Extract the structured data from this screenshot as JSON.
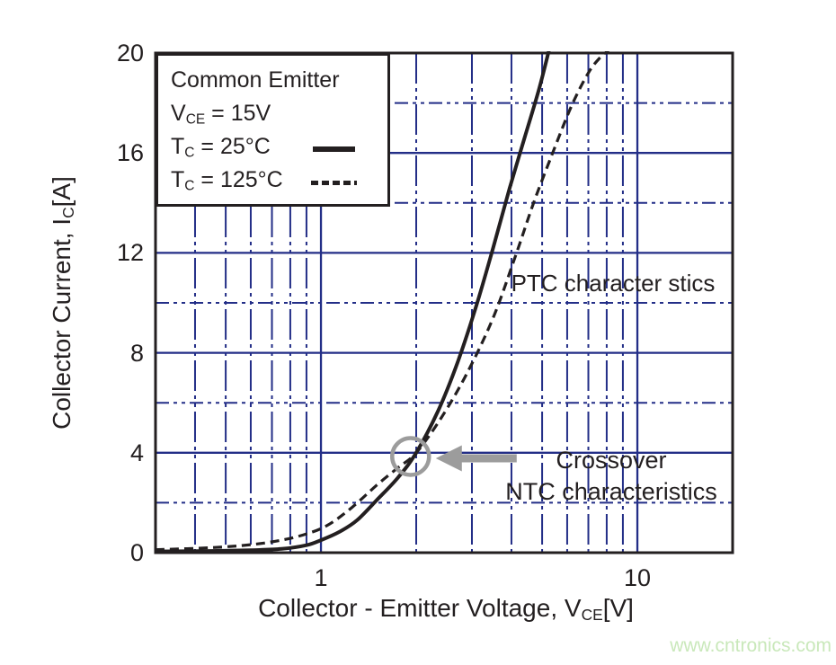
{
  "colors": {
    "grid_blue": "#232e87",
    "curve_black": "#231f20",
    "text_black": "#231f20",
    "annotation_gray": "#9c9c9c",
    "watermark_green": "#c9e8ba"
  },
  "legend": {
    "title": "Common Emitter",
    "rows": [
      {
        "main": "V",
        "sub": "CE",
        "rest": " = 15V"
      },
      {
        "main": "T",
        "sub": "C",
        "rest": " = 25°C"
      },
      {
        "main": "T",
        "sub": "C",
        "rest": " = 125°C"
      }
    ]
  },
  "axes": {
    "y_title": {
      "main": "Collector Current, I",
      "sub": "C",
      "rest": "[A]"
    },
    "x_title": {
      "main": "Collector - Emitter Voltage, V",
      "sub": "CE",
      "rest": "[V]"
    },
    "y_tick_labels": [
      "20",
      "16",
      "12",
      "8",
      "4",
      "0"
    ],
    "x_tick_labels": [
      "1",
      "10"
    ]
  },
  "annotations": {
    "ptc_label": "PTC character stics",
    "crossover_line1": "Crossover",
    "crossover_line2": "NTC characteristics"
  },
  "watermark": "www.cntronics.com",
  "chart_data": {
    "type": "line",
    "title": "",
    "xlabel": "Collector - Emitter Voltage, VCE [V]",
    "ylabel": "Collector Current, IC [A]",
    "x_scale": "log",
    "xlim": [
      0.3,
      20
    ],
    "ylim": [
      0,
      20
    ],
    "grid": true,
    "legend_position": "top-left",
    "x_major_gridlines": [
      1,
      10
    ],
    "x_minor_gridlines": [
      0.4,
      0.5,
      0.6,
      0.7,
      0.8,
      0.9,
      2,
      3,
      4,
      5,
      6,
      7,
      8,
      9
    ],
    "y_major_gridlines": [
      4,
      8,
      12,
      16
    ],
    "y_minor_gridlines": [
      2,
      6,
      10,
      14,
      18
    ],
    "series": [
      {
        "name": "Tc = 25°C",
        "line_style": "solid",
        "temperature_c": 25,
        "x": [
          0.3,
          0.45,
          0.6,
          0.75,
          0.9,
          1.0,
          1.15,
          1.3,
          1.5,
          1.75,
          2.0,
          2.35,
          2.7,
          3.1,
          3.5,
          3.95,
          4.4,
          4.9,
          5.3
        ],
        "y": [
          0.05,
          0.07,
          0.1,
          0.15,
          0.3,
          0.5,
          0.85,
          1.3,
          2.1,
          3.0,
          4.0,
          5.7,
          7.6,
          9.9,
          12.2,
          14.6,
          16.6,
          18.6,
          20.3
        ]
      },
      {
        "name": "Tc = 125°C",
        "line_style": "dashed",
        "temperature_c": 125,
        "x": [
          0.3,
          0.45,
          0.6,
          0.75,
          0.9,
          1.05,
          1.25,
          1.5,
          1.75,
          2.0,
          2.4,
          2.9,
          3.5,
          4.1,
          4.7,
          5.4,
          6.2,
          7.0,
          7.6,
          8.1
        ],
        "y": [
          0.12,
          0.2,
          0.32,
          0.5,
          0.75,
          1.1,
          1.8,
          2.7,
          3.4,
          4.0,
          5.4,
          7.2,
          9.4,
          11.8,
          14.0,
          16.0,
          17.9,
          19.2,
          19.8,
          20.1
        ]
      }
    ],
    "crossover_point": {
      "x": 1.92,
      "y": 3.85
    }
  }
}
